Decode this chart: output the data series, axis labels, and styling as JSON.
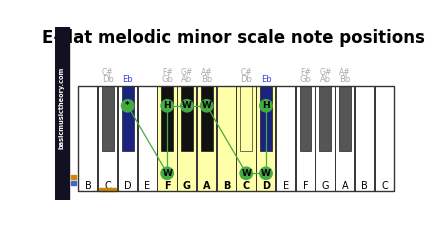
{
  "title": "E-flat melodic minor scale note positions",
  "white_keys": [
    "B",
    "C",
    "D",
    "E",
    "F",
    "G",
    "A",
    "B",
    "C",
    "D",
    "E",
    "F",
    "G",
    "A",
    "B",
    "C"
  ],
  "n_white": 16,
  "yellow_white_indices": [
    4,
    5,
    6,
    7,
    8,
    9
  ],
  "black_key_slots": [
    1.5,
    2.5,
    4.5,
    5.5,
    6.5,
    8.5,
    9.5,
    11.5,
    12.5,
    13.5
  ],
  "black_key_colors": [
    "#555555",
    "#1a237e",
    "#111111",
    "#111111",
    "#111111",
    "#ffffaa",
    "#1a237e",
    "#555555",
    "#555555",
    "#555555"
  ],
  "black_label1": [
    "C#",
    "",
    "F#",
    "G#",
    "A#",
    "C#",
    "",
    "F#",
    "G#",
    "A#"
  ],
  "black_label2": [
    "Db",
    "Eb",
    "Gb",
    "Ab",
    "Bb",
    "Db",
    "Eb",
    "Gb",
    "Ab",
    "Bb"
  ],
  "black_label2_colors": [
    "#aaaaaa",
    "#3344dd",
    "#aaaaaa",
    "#aaaaaa",
    "#aaaaaa",
    "#aaaaaa",
    "#3344dd",
    "#aaaaaa",
    "#aaaaaa",
    "#aaaaaa"
  ],
  "black_label1_colors": [
    "#aaaaaa",
    "#aaaaaa",
    "#aaaaaa",
    "#aaaaaa",
    "#aaaaaa",
    "#aaaaaa",
    "#aaaaaa",
    "#aaaaaa",
    "#aaaaaa",
    "#aaaaaa"
  ],
  "circle_color": "#44aa44",
  "line_color": "#44aa44",
  "sidebar_color": "#111122",
  "orange_color": "#cc8800",
  "blue_legend_color": "#4466cc",
  "title_fontsize": 12
}
